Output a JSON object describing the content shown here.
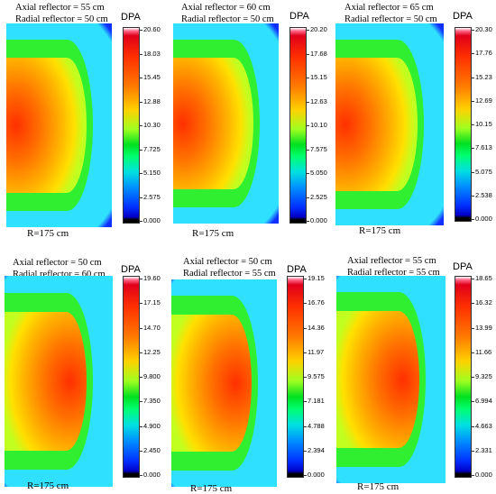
{
  "panels": [
    {
      "axial": "Axial reflector = 55 cm",
      "radial": "Radial reflector = 50 cm",
      "r_label": "R=175 cm",
      "cbar_title": "DPA",
      "ticks": [
        "20.60",
        "18.03",
        "15.45",
        "12.88",
        "10.30",
        "7.725",
        "5.150",
        "2.575",
        "0.000"
      ]
    },
    {
      "axial": "Axial reflector = 60 cm",
      "radial": "Radial reflector = 50 cm",
      "r_label": "R=175 cm",
      "cbar_title": "DPA",
      "ticks": [
        "20.20",
        "17.68",
        "15.15",
        "12.63",
        "10.10",
        "7.575",
        "5.050",
        "2.525",
        "0.000"
      ]
    },
    {
      "axial": "Axial reflector = 65 cm",
      "radial": "Radial reflector = 50 cm",
      "r_label": "R=175 cm",
      "cbar_title": "DPA",
      "ticks": [
        "20.30",
        "17.76",
        "15.23",
        "12.69",
        "10.15",
        "7.613",
        "5.075",
        "2.538",
        "0.000"
      ]
    },
    {
      "axial": "Axial reflector = 50 cm",
      "radial": "Radial reflector = 60 cm",
      "r_label": "R=175 cm",
      "cbar_title": "DPA",
      "ticks": [
        "19.60",
        "17.15",
        "14.70",
        "12.25",
        "9.800",
        "7.350",
        "4.900",
        "2.450",
        "0.000"
      ]
    },
    {
      "axial": "Axial reflector = 50 cm",
      "radial": "Radial reflector = 55 cm",
      "r_label": "R=175 cm",
      "cbar_title": "DPA",
      "ticks": [
        "19.15",
        "16.76",
        "14.36",
        "11.97",
        "9.575",
        "7.181",
        "4.788",
        "2.394",
        "0.000"
      ]
    },
    {
      "axial": "Axial reflector = 55 cm",
      "radial": "Radial reflector = 55 cm",
      "r_label": "R=175 cm",
      "cbar_title": "DPA",
      "ticks": [
        "18.65",
        "16.32",
        "13.99",
        "11.66",
        "9.325",
        "6.994",
        "4.663",
        "2.331",
        "0.000"
      ]
    }
  ],
  "chart_data": [
    {
      "type": "heatmap",
      "zlabel": "DPA",
      "zlim": [
        0,
        20.6
      ],
      "annotations": [
        "Axial reflector = 55 cm",
        "Radial reflector = 50 cm",
        "R=175 cm"
      ]
    },
    {
      "type": "heatmap",
      "zlabel": "DPA",
      "zlim": [
        0,
        20.2
      ],
      "annotations": [
        "Axial reflector = 60 cm",
        "Radial reflector = 50 cm",
        "R=175 cm"
      ]
    },
    {
      "type": "heatmap",
      "zlabel": "DPA",
      "zlim": [
        0,
        20.3
      ],
      "annotations": [
        "Axial reflector = 65 cm",
        "Radial reflector = 50 cm",
        "R=175 cm"
      ]
    },
    {
      "type": "heatmap",
      "zlabel": "DPA",
      "zlim": [
        0,
        19.6
      ],
      "annotations": [
        "Axial reflector = 50 cm",
        "Radial reflector = 60 cm",
        "R=175 cm"
      ]
    },
    {
      "type": "heatmap",
      "zlabel": "DPA",
      "zlim": [
        0,
        19.15
      ],
      "annotations": [
        "Axial reflector = 50 cm",
        "Radial reflector = 55 cm",
        "R=175 cm"
      ]
    },
    {
      "type": "heatmap",
      "zlabel": "DPA",
      "zlim": [
        0,
        18.65
      ],
      "annotations": [
        "Axial reflector = 55 cm",
        "Radial reflector = 55 cm",
        "R=175 cm"
      ]
    }
  ]
}
